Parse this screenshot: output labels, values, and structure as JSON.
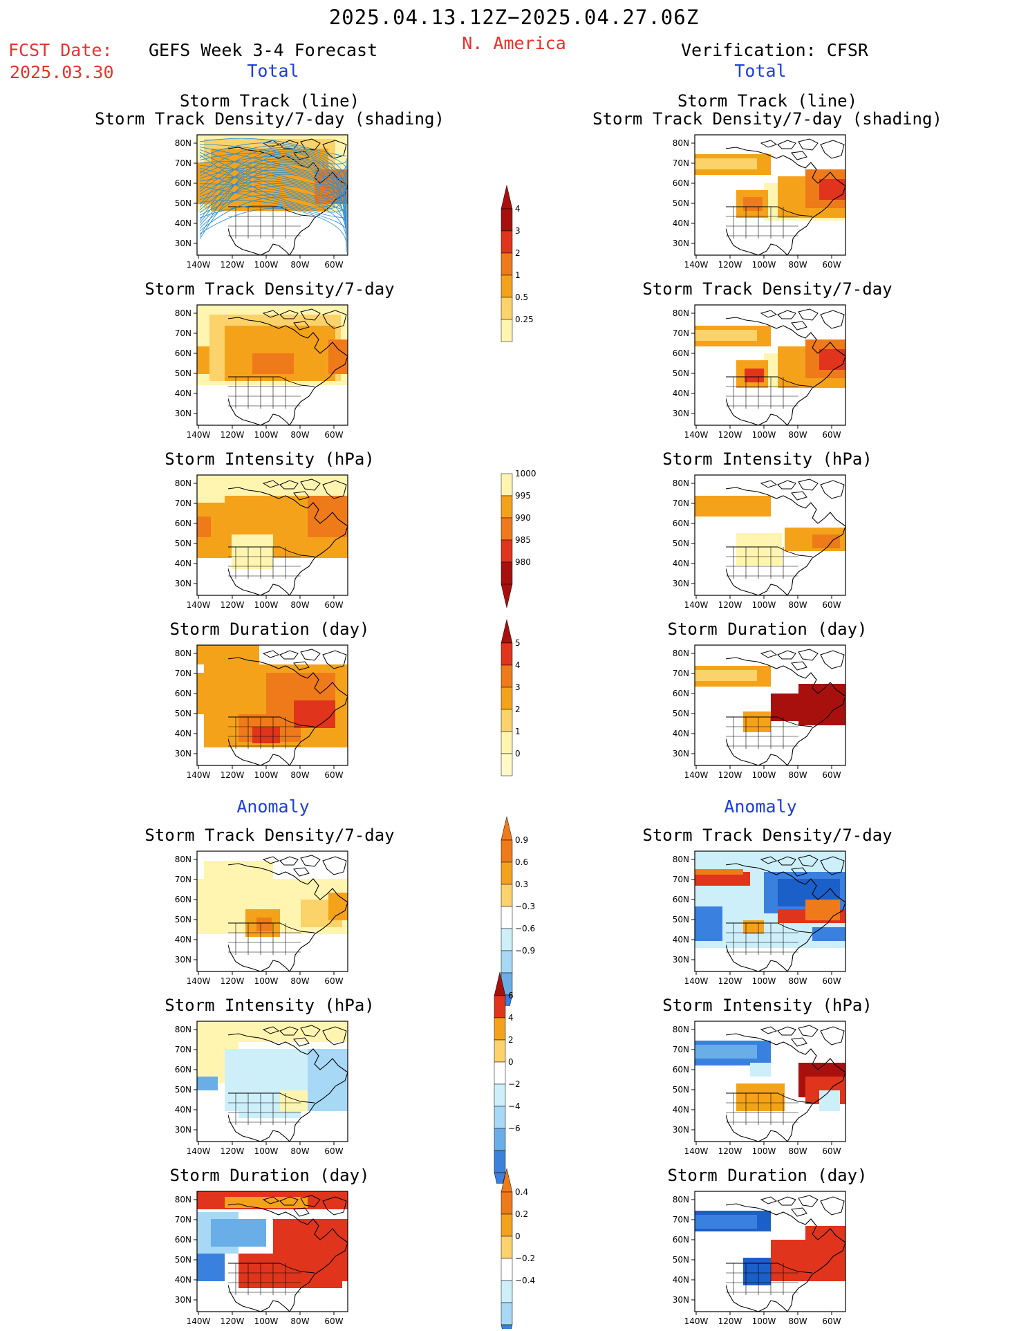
{
  "header": {
    "period": "2025.04.13.12Z−2025.04.27.06Z",
    "fcst_label": "FCST Date:",
    "fcst_date": "2025.03.30",
    "model": "GEFS Week 3-4 Forecast",
    "region": "N. America",
    "verification": "Verification: CFSR"
  },
  "sections": {
    "total_left": "Total",
    "total_right": "Total",
    "anomaly_left": "Anomaly",
    "anomaly_right": "Anomaly"
  },
  "panels": {
    "p1_title_a": "Storm Track (line)",
    "p1_title_b": "Storm Track Density/7-day (shading)",
    "p2_title": "Storm Track Density/7-day",
    "p3_title": "Storm Intensity (hPa)",
    "p4_title": "Storm Duration (day)",
    "a1_title": "Storm Track Density/7-day",
    "a2_title": "Storm Intensity (hPa)",
    "a3_title": "Storm Duration (day)"
  },
  "axes": {
    "lat_ticks": [
      "80N",
      "70N",
      "60N",
      "50N",
      "40N",
      "30N"
    ],
    "lon_ticks": [
      "140W",
      "120W",
      "100W",
      "80W",
      "60W"
    ]
  },
  "colorbars": {
    "density_total": [
      "4",
      "3",
      "2",
      "1",
      "0.5",
      "0.25"
    ],
    "intensity_total": [
      "1000",
      "995",
      "990",
      "985",
      "980"
    ],
    "duration_total": [
      "5",
      "4",
      "3",
      "2",
      "1",
      "0"
    ],
    "density_anom": [
      "0.9",
      "0.6",
      "0.3",
      "−0.3",
      "−0.6",
      "−0.9"
    ],
    "intensity_anom": [
      "6",
      "4",
      "2",
      "0",
      "−2",
      "−4",
      "−6"
    ],
    "duration_anom": [
      "0.4",
      "0.2",
      "0",
      "−0.2",
      "−0.4"
    ]
  },
  "colors": {
    "pale_yellow": "#fff5b0",
    "light_orange": "#fcd26a",
    "orange": "#f5a21b",
    "dark_orange": "#ef7a1a",
    "red": "#e0341c",
    "dark_red": "#a8100e",
    "pale_blue": "#cdeffa",
    "light_blue": "#a7d8f5",
    "mid_blue": "#6aaee8",
    "blue": "#3a80de",
    "dark_blue": "#1b5fc9",
    "header_red": "#e8322c",
    "header_blue": "#1d3de2",
    "track_line": "#2a8fd8"
  }
}
